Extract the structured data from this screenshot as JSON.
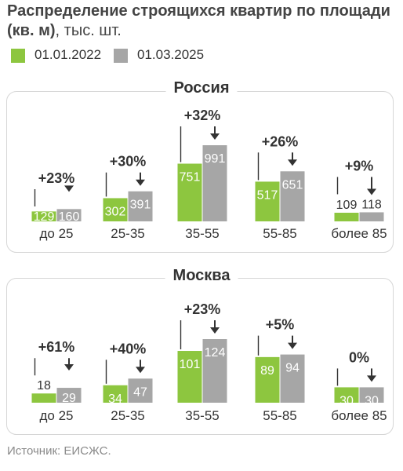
{
  "title": {
    "bold": "Распределение строящихся квартир по площади (кв. м)",
    "rest": ", тыс. шт."
  },
  "colors": {
    "series_2022": "#8dc63f",
    "series_2025": "#a6a6a6",
    "frame": "#d6d6d6"
  },
  "legend": [
    {
      "label": "01.01.2022",
      "color": "#8dc63f"
    },
    {
      "label": "01.03.2025",
      "color": "#a6a6a6"
    }
  ],
  "source": "Источник: ЕИСЖС.",
  "chart_data": [
    {
      "type": "bar",
      "title": "Россия",
      "categories": [
        "до 25",
        "25-35",
        "35-55",
        "55-85",
        "более 85"
      ],
      "series": [
        {
          "name": "01.01.2022",
          "values": [
            129,
            302,
            751,
            517,
            109
          ]
        },
        {
          "name": "01.03.2025",
          "values": [
            160,
            391,
            991,
            651,
            118
          ]
        }
      ],
      "annotations": [
        "+23%",
        "+30%",
        "+32%",
        "+26%",
        "+9%"
      ]
    },
    {
      "type": "bar",
      "title": "Москва",
      "categories": [
        "до 25",
        "25-35",
        "35-55",
        "55-85",
        "более 85"
      ],
      "series": [
        {
          "name": "01.01.2022",
          "values": [
            18,
            34,
            101,
            89,
            30
          ]
        },
        {
          "name": "01.03.2025",
          "values": [
            29,
            47,
            124,
            94,
            30
          ]
        }
      ],
      "annotations": [
        "+61%",
        "+40%",
        "+23%",
        "+5%",
        "0%"
      ]
    }
  ]
}
